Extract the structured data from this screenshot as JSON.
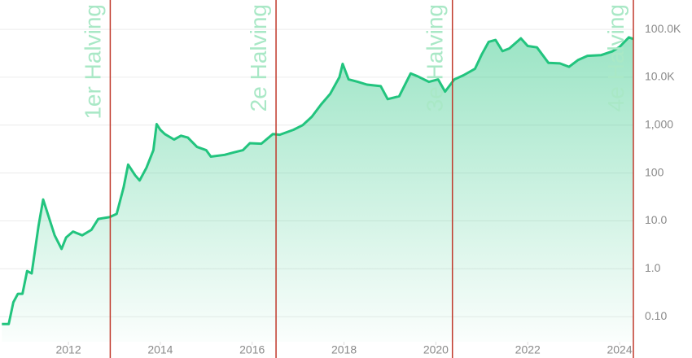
{
  "chart_data": {
    "type": "line",
    "log_y": true,
    "grid": true,
    "x": [
      2010.55,
      2010.7,
      2010.8,
      2010.9,
      2011.0,
      2011.1,
      2011.2,
      2011.35,
      2011.45,
      2011.55,
      2011.7,
      2011.85,
      2011.95,
      2012.1,
      2012.3,
      2012.5,
      2012.65,
      2012.9,
      2013.05,
      2013.2,
      2013.3,
      2013.45,
      2013.55,
      2013.7,
      2013.85,
      2013.92,
      2014.0,
      2014.1,
      2014.3,
      2014.45,
      2014.6,
      2014.8,
      2015.0,
      2015.1,
      2015.4,
      2015.6,
      2015.8,
      2015.95,
      2016.2,
      2016.45,
      2016.6,
      2016.9,
      2017.1,
      2017.3,
      2017.5,
      2017.7,
      2017.9,
      2017.97,
      2018.1,
      2018.3,
      2018.5,
      2018.8,
      2018.95,
      2019.2,
      2019.45,
      2019.6,
      2019.85,
      2020.05,
      2020.2,
      2020.4,
      2020.6,
      2020.85,
      2021.0,
      2021.15,
      2021.3,
      2021.45,
      2021.6,
      2021.85,
      2022.0,
      2022.2,
      2022.45,
      2022.7,
      2022.9,
      2023.1,
      2023.3,
      2023.6,
      2023.85,
      2024.0,
      2024.2,
      2024.3
    ],
    "series": [
      {
        "color": "#22c47e",
        "values": [
          0.07,
          0.07,
          0.2,
          0.3,
          0.3,
          0.9,
          0.8,
          8,
          28,
          14,
          5,
          2.6,
          4.5,
          6,
          5,
          6.5,
          11,
          12,
          14,
          50,
          150,
          90,
          70,
          130,
          300,
          1050,
          800,
          650,
          500,
          600,
          550,
          350,
          300,
          220,
          240,
          270,
          300,
          420,
          410,
          650,
          630,
          800,
          1000,
          1500,
          2700,
          4500,
          10000,
          19000,
          9000,
          8000,
          7000,
          6500,
          3500,
          4000,
          12000,
          10500,
          8000,
          9000,
          5000,
          9000,
          11000,
          15000,
          30000,
          55000,
          60000,
          35000,
          40000,
          65000,
          45000,
          42000,
          20000,
          19500,
          16500,
          23000,
          28000,
          29000,
          35000,
          43000,
          68000,
          63000
        ]
      }
    ],
    "xlim": [
      2010.51,
      2024.3
    ],
    "xticks": [
      2012,
      2014,
      2016,
      2018,
      2020,
      2022,
      2024
    ],
    "ylim": [
      0.03,
      410000
    ],
    "yticks": [
      {
        "value": 0.1,
        "label": "0.10"
      },
      {
        "value": 1,
        "label": "1.0"
      },
      {
        "value": 10,
        "label": "10.0"
      },
      100,
      {
        "value": 1000,
        "label": "1,000"
      },
      {
        "value": 10000,
        "label": "10.0K"
      },
      {
        "value": 100000,
        "label": "100.0K"
      }
    ],
    "annotations": [
      {
        "x": 2012.91,
        "label": "1er Halving",
        "color": "#c0392b"
      },
      {
        "x": 2016.52,
        "label": "2e Halving",
        "color": "#c0392b"
      },
      {
        "x": 2020.36,
        "label": "3e Halving",
        "color": "#c0392b"
      },
      {
        "x": 2024.3,
        "label": "4e Halving",
        "color": "#c0392b"
      }
    ]
  }
}
